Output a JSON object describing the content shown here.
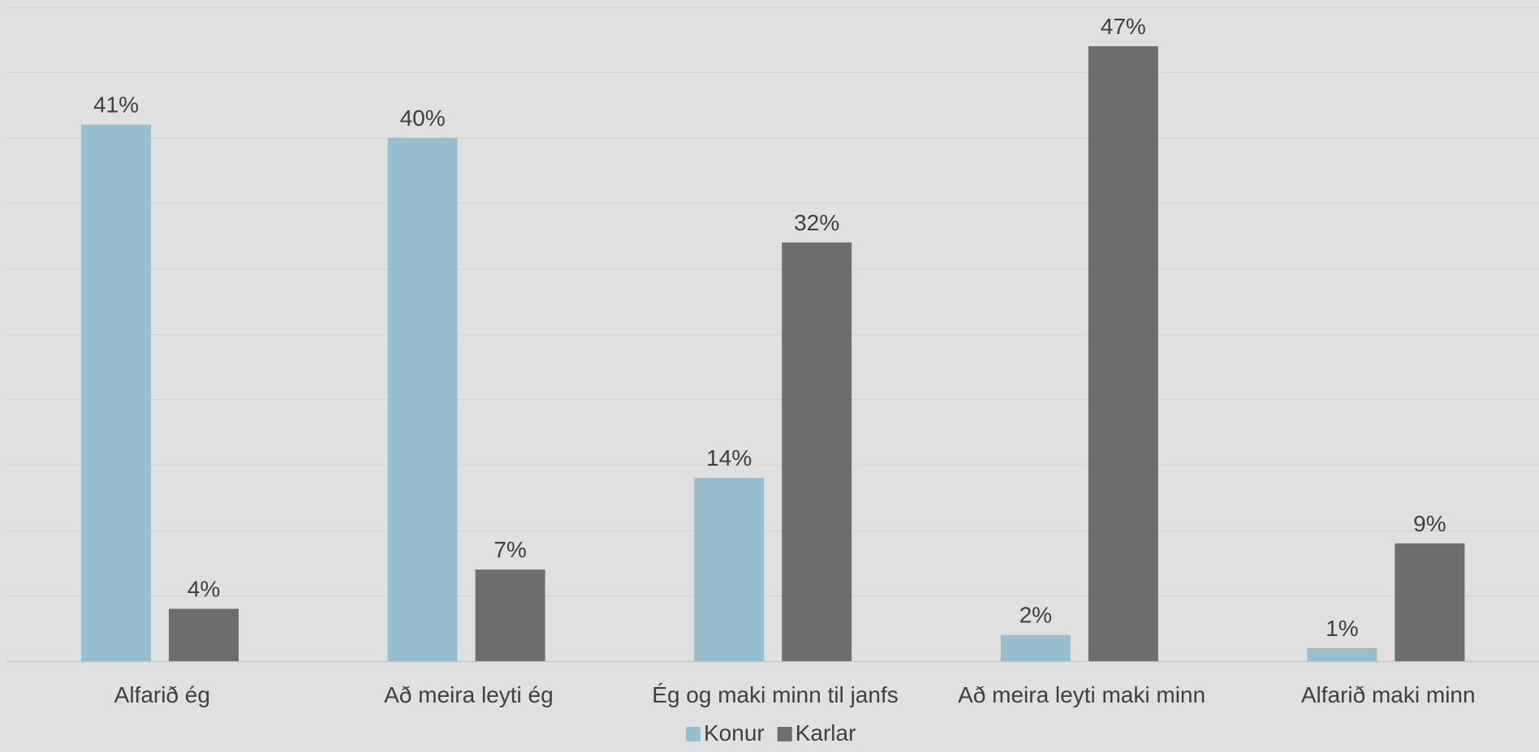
{
  "chart_data": {
    "type": "bar",
    "categories": [
      "Alfarið ég",
      "Að meira leyti ég",
      "Ég og maki minn til janfs",
      "Að meira leyti maki minn",
      "Alfarið maki minn"
    ],
    "series": [
      {
        "name": "Konur",
        "color": "#97bfcf",
        "values": [
          41,
          40,
          14,
          2,
          1
        ],
        "labels": [
          "41%",
          "40%",
          "14%",
          "2%",
          "1%"
        ]
      },
      {
        "name": "Karlar",
        "color": "#6e6e6e",
        "values": [
          4,
          7,
          32,
          47,
          9
        ],
        "labels": [
          "4%",
          "7%",
          "32%",
          "47%",
          "9%"
        ]
      }
    ],
    "ylim": [
      0,
      50
    ],
    "y_unit": "%",
    "grid": true,
    "legend_position": "bottom-center",
    "title": "",
    "xlabel": "",
    "ylabel": ""
  }
}
